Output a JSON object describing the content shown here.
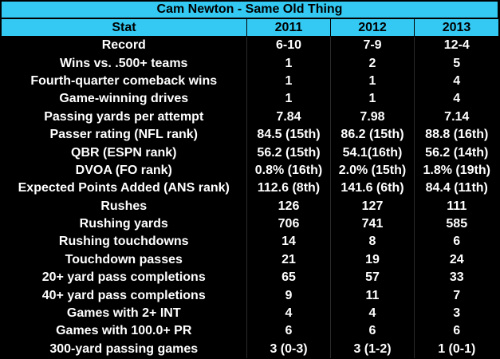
{
  "title": "Cam Newton - Same Old Thing",
  "colors": {
    "header_bg": "#33c9f2",
    "body_bg": "#000000",
    "body_text": "#ffffff",
    "header_text": "#000000"
  },
  "columns": [
    "Stat",
    "2011",
    "2012",
    "2013"
  ],
  "rows": [
    [
      "Record",
      "6-10",
      "7-9",
      "12-4"
    ],
    [
      "Wins vs. .500+ teams",
      "1",
      "2",
      "5"
    ],
    [
      "Fourth-quarter comeback wins",
      "1",
      "1",
      "4"
    ],
    [
      "Game-winning drives",
      "1",
      "1",
      "4"
    ],
    [
      "Passing yards per attempt",
      "7.84",
      "7.98",
      "7.14"
    ],
    [
      "Passer rating (NFL rank)",
      "84.5 (15th)",
      "86.2 (15th)",
      "88.8 (16th)"
    ],
    [
      "QBR (ESPN rank)",
      "56.2 (15th)",
      "54.1(16th)",
      "56.2 (14th)"
    ],
    [
      "DVOA (FO rank)",
      "0.8% (16th)",
      "2.0% (15th)",
      "1.8% (19th)"
    ],
    [
      "Expected Points Added (ANS rank)",
      "112.6 (8th)",
      "141.6 (6th)",
      "84.4 (11th)"
    ],
    [
      "Rushes",
      "126",
      "127",
      "111"
    ],
    [
      "Rushing yards",
      "706",
      "741",
      "585"
    ],
    [
      "Rushing touchdowns",
      "14",
      "8",
      "6"
    ],
    [
      "Touchdown passes",
      "21",
      "19",
      "24"
    ],
    [
      "20+ yard pass completions",
      "65",
      "57",
      "33"
    ],
    [
      "40+ yard pass completions",
      "9",
      "11",
      "7"
    ],
    [
      "Games with 2+ INT",
      "4",
      "4",
      "3"
    ],
    [
      "Games with 100.0+ PR",
      "6",
      "6",
      "6"
    ],
    [
      "300-yard passing games",
      "3 (0-3)",
      "3 (1-2)",
      "1 (0-1)"
    ]
  ]
}
